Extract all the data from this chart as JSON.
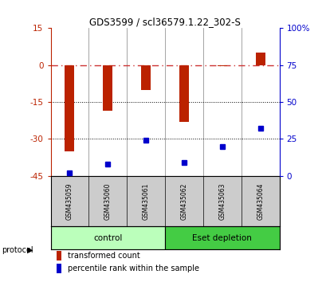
{
  "title": "GDS3599 / scl36579.1.22_302-S",
  "samples": [
    "GSM435059",
    "GSM435060",
    "GSM435061",
    "GSM435062",
    "GSM435063",
    "GSM435064"
  ],
  "red_bars": [
    -35,
    -18.5,
    -10,
    -23,
    -0.5,
    5
  ],
  "blue_pct": [
    2,
    8,
    24,
    9,
    20,
    32
  ],
  "ylim_left": [
    -45,
    15
  ],
  "ylim_right": [
    0,
    100
  ],
  "yticks_left": [
    15,
    0,
    -15,
    -30,
    -45
  ],
  "yticks_right": [
    100,
    75,
    50,
    25,
    0
  ],
  "ytick_labels_right": [
    "100%",
    "75",
    "50",
    "25",
    "0"
  ],
  "bar_color": "#bb2200",
  "dot_color": "#0000cc",
  "zero_line_color": "#cc3333",
  "protocol_labels": [
    "control",
    "Eset depletion"
  ],
  "protocol_colors": [
    "#bbffbb",
    "#44cc44"
  ],
  "sample_box_color": "#cccccc",
  "legend_red": "transformed count",
  "legend_blue": "percentile rank within the sample",
  "bar_width": 0.25
}
